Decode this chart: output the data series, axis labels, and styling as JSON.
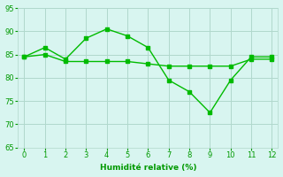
{
  "line1_x": [
    0,
    1,
    2,
    3,
    4,
    5,
    6,
    7,
    8,
    9,
    10,
    11,
    12
  ],
  "line1_y": [
    84.5,
    86.5,
    84.0,
    88.5,
    90.5,
    89.0,
    86.5,
    79.5,
    77.0,
    72.5,
    79.5,
    84.5,
    84.5
  ],
  "line2_x": [
    0,
    1,
    2,
    3,
    4,
    5,
    6,
    7,
    8,
    9,
    10,
    11,
    12
  ],
  "line2_y": [
    84.5,
    85.0,
    83.5,
    83.5,
    83.5,
    83.5,
    83.0,
    82.5,
    82.5,
    82.5,
    82.5,
    84.0,
    84.0
  ],
  "line_color": "#00bb00",
  "bg_color": "#d8f5f0",
  "grid_color": "#b0d8cc",
  "xlabel": "Humidité relative (%)",
  "xlim": [
    -0.3,
    12.3
  ],
  "ylim": [
    65,
    95
  ],
  "yticks": [
    65,
    70,
    75,
    80,
    85,
    90,
    95
  ],
  "xticks": [
    0,
    1,
    2,
    3,
    4,
    5,
    6,
    7,
    8,
    9,
    10,
    11,
    12
  ],
  "xlabel_color": "#009900",
  "tick_color": "#009900",
  "markersize": 3,
  "linewidth": 1.0
}
